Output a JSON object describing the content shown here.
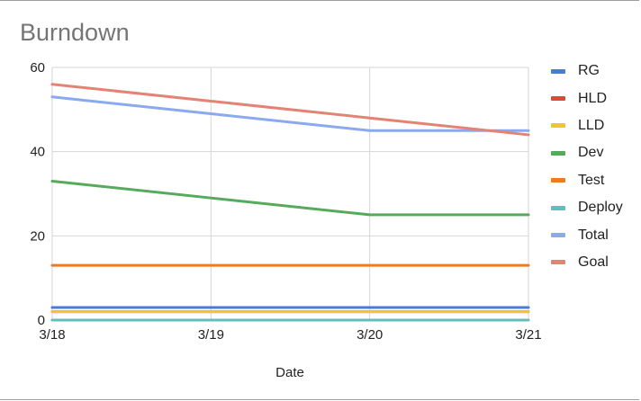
{
  "chart_data": {
    "type": "line",
    "title": "Burndown",
    "xlabel": "Date",
    "ylabel": "",
    "categories": [
      "3/18",
      "3/19",
      "3/20",
      "3/21"
    ],
    "ylim": [
      0,
      60
    ],
    "yticks": [
      0,
      20,
      40,
      60
    ],
    "grid": true,
    "legend_position": "right",
    "series": [
      {
        "name": "RG",
        "color": "#4a7bd9",
        "values": [
          3,
          3,
          3,
          3
        ]
      },
      {
        "name": "HLD",
        "color": "#d94a38",
        "values": [
          2,
          2,
          2,
          2
        ]
      },
      {
        "name": "LLD",
        "color": "#f4c430",
        "values": [
          2,
          2,
          2,
          2
        ]
      },
      {
        "name": "Dev",
        "color": "#56aa5b",
        "values": [
          33,
          29,
          25,
          25
        ]
      },
      {
        "name": "Test",
        "color": "#ee7b1e",
        "values": [
          13,
          13,
          13,
          13
        ]
      },
      {
        "name": "Deploy",
        "color": "#63bdbd",
        "values": [
          0,
          0,
          0,
          0
        ]
      },
      {
        "name": "Total",
        "color": "#8aa9ef",
        "values": [
          53,
          49,
          45,
          45
        ]
      },
      {
        "name": "Goal",
        "color": "#e38374",
        "values": [
          56,
          52,
          48,
          44
        ]
      }
    ]
  }
}
